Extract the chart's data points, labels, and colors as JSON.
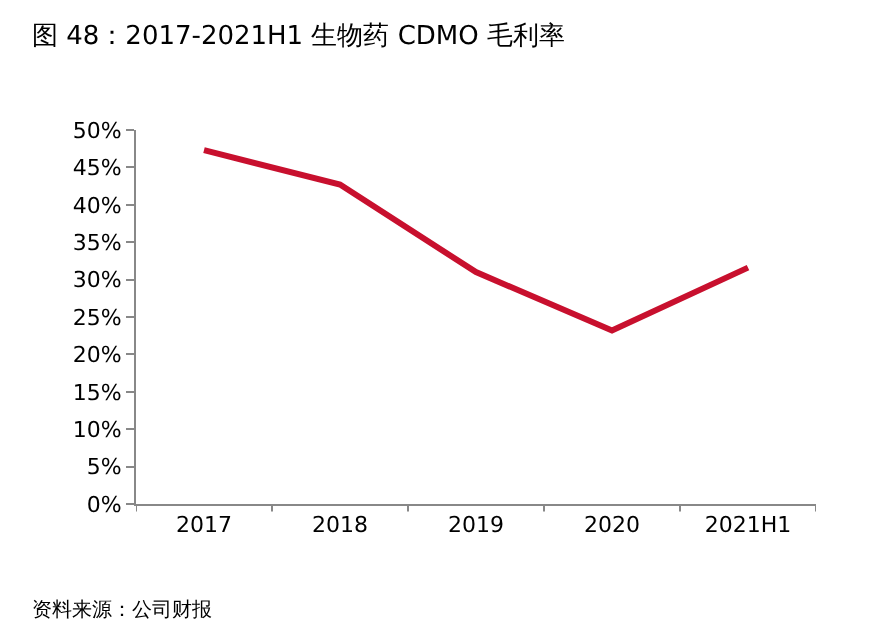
{
  "chart_data": {
    "type": "line",
    "title": "图 48：2017-2021H1 生物药 CDMO 毛利率",
    "categories": [
      "2017",
      "2018",
      "2019",
      "2020",
      "2021H1"
    ],
    "series": [
      {
        "color": "#c8102e",
        "values": [
          47.3,
          42.7,
          31.0,
          23.2,
          31.6
        ]
      }
    ],
    "ylim": [
      0,
      50
    ],
    "yticks": [
      {
        "value": 0,
        "label": "0%"
      },
      {
        "value": 5,
        "label": "5%"
      },
      {
        "value": 10,
        "label": "10%"
      },
      {
        "value": 15,
        "label": "15%"
      },
      {
        "value": 20,
        "label": "20%"
      },
      {
        "value": 25,
        "label": "25%"
      },
      {
        "value": 30,
        "label": "30%"
      },
      {
        "value": 35,
        "label": "35%"
      },
      {
        "value": 40,
        "label": "40%"
      },
      {
        "value": 45,
        "label": "45%"
      },
      {
        "value": 50,
        "label": "50%"
      }
    ],
    "grid": false,
    "marker": "none",
    "line_style": "solid",
    "annotations": [
      "资料来源：公司财报"
    ]
  }
}
